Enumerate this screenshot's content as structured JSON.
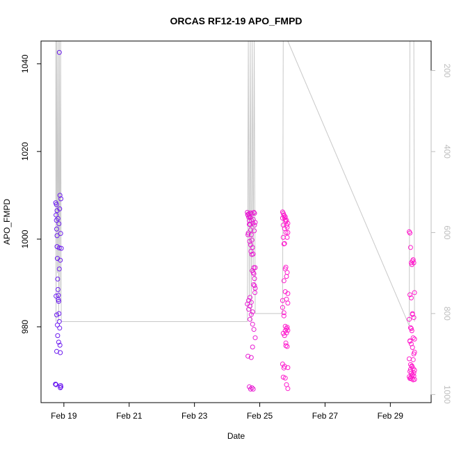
{
  "chart_data": {
    "type": "scatter",
    "title": "ORCAS RF12-19 APO_FMPD",
    "xlabel": "Date",
    "ylabel": "APO_FMPD",
    "x_ticks": [
      "Feb 19",
      "Feb 21",
      "Feb 23",
      "Feb 25",
      "Feb 27",
      "Feb 29"
    ],
    "x_tick_days": [
      19,
      21,
      23,
      25,
      27,
      29
    ],
    "xlim": [
      18.3,
      30.25
    ],
    "ylim": [
      962.7,
      1045.2
    ],
    "y_ticks": [
      980,
      1000,
      1020,
      1040
    ],
    "secondary_axis": {
      "side": "right",
      "reversed": true,
      "color": "#bdbdbd",
      "ticks": [
        200,
        400,
        600,
        800,
        1000
      ],
      "lim": [
        1020,
        127
      ]
    },
    "marker": "open-circle",
    "color_gradient": [
      "#6a1cf0",
      "#ff1ccc"
    ],
    "series": [
      {
        "x": [
          18.75,
          18.76,
          18.77,
          18.78,
          18.79,
          18.8,
          18.81,
          18.82,
          18.83,
          18.84,
          18.85,
          18.86,
          18.87,
          18.88,
          18.89,
          18.9,
          18.75,
          18.78,
          18.8,
          18.83,
          18.86,
          18.88,
          18.91,
          18.77,
          18.79,
          18.82,
          18.85,
          18.87,
          18.9,
          18.92,
          18.76,
          18.78,
          18.81,
          18.84,
          18.86,
          18.89,
          18.74,
          18.76,
          18.89,
          18.91,
          18.79,
          18.86
        ],
        "y": [
          1008.3,
          1005.5,
          1004.3,
          1002.3,
          998.3,
          995.6,
          990.9,
          988.5,
          987.2,
          985.8,
          983.0,
          981.2,
          979.7,
          975.8,
          974.1,
          966.6,
          966.9,
          974.4,
          980.4,
          986.2,
          998.0,
          1010.0,
          1009.2,
          1007.9,
          1006.5,
          1004.7,
          1003.5,
          1006.9,
          1001.3,
          997.9,
          987.0,
          982.7,
          978.0,
          976.5,
          993.2,
          995.2,
          966.9,
          966.8,
          966.1,
          966.3,
          1000.8,
          1042.6
        ]
      },
      {
        "x": [
          24.62,
          24.64,
          24.66,
          24.68,
          24.7,
          24.72,
          24.74,
          24.76,
          24.78,
          24.8,
          24.82,
          24.84,
          24.86,
          24.66,
          24.7,
          24.74,
          24.78,
          24.82,
          24.86,
          24.64,
          24.68,
          24.72,
          24.76,
          24.8,
          24.84,
          24.63,
          24.67,
          24.71,
          24.75,
          24.79,
          24.83,
          24.65,
          24.69,
          24.73,
          24.77,
          24.81,
          24.85,
          24.62,
          24.66,
          24.7,
          24.74,
          24.78,
          24.82,
          24.86,
          24.68,
          24.72,
          24.76,
          24.8,
          24.84,
          24.7,
          24.74,
          24.78,
          24.82,
          24.86,
          24.64,
          24.68,
          24.72,
          24.76,
          24.8,
          24.84
        ],
        "y": [
          1006.1,
          1005.5,
          1005.0,
          1004.2,
          1003.3,
          1002.1,
          1001.0,
          999.8,
          998.1,
          996.6,
          993.5,
          991.0,
          988.8,
          986.0,
          984.7,
          982.8,
          980.6,
          979.4,
          977.5,
          973.3,
          966.3,
          965.8,
          966.1,
          965.8,
          1005.9,
          1005.6,
          1005.8,
          1004.9,
          1004.2,
          1003.6,
          1001.9,
          1001.4,
          999.5,
          997.2,
          992.8,
          989.6,
          987.8,
          985.2,
          984.0,
          981.7,
          973.0,
          975.4,
          1006.1,
          1003.8,
          1005.3,
          998.7,
          996.5,
          992.4,
          989.4,
          986.7,
          985.6,
          983.4,
          992.1,
          993.5,
          1001.0,
          1003.4,
          1006.0,
          1005.8,
          1004.5,
          1003.2
        ]
      },
      {
        "x": [
          25.7,
          25.72,
          25.74,
          25.76,
          25.78,
          25.8,
          25.82,
          25.84,
          25.86,
          25.72,
          25.76,
          25.8,
          25.84,
          25.74,
          25.78,
          25.82,
          25.86,
          25.7,
          25.74,
          25.78,
          25.82,
          25.86,
          25.72,
          25.76,
          25.8,
          25.84,
          25.7,
          25.74,
          25.78,
          25.82,
          25.86,
          25.72,
          25.76,
          25.8,
          25.84,
          25.7,
          25.74,
          25.78,
          25.82,
          25.86,
          25.72,
          25.76,
          25.8,
          25.84,
          25.74,
          25.78,
          25.82,
          25.86,
          25.7,
          25.74,
          25.78,
          25.82,
          25.86
        ],
        "y": [
          1006.2,
          1005.9,
          1005.4,
          1004.9,
          1004.4,
          1004.0,
          1003.2,
          1002.7,
          1001.5,
          1000.4,
          999.0,
          993.6,
          992.4,
          990.5,
          988.0,
          986.3,
          985.4,
          984.4,
          983.2,
          980.1,
          979.6,
          979.2,
          978.5,
          978.0,
          975.7,
          975.5,
          971.5,
          970.6,
          968.3,
          966.8,
          965.9,
          968.5,
          971.0,
          976.3,
          979.9,
          1004.8,
          1005.5,
          1005.1,
          1004.3,
          1003.6,
          1003.2,
          1002.4,
          1001.5,
          1000.4,
          998.9,
          993.2,
          991.5,
          987.6,
          986.0,
          982.5,
          979.1,
          978.6,
          970.7
        ]
      },
      {
        "x": [
          29.58,
          29.6,
          29.62,
          29.64,
          29.66,
          29.68,
          29.7,
          29.72,
          29.74,
          29.6,
          29.64,
          29.68,
          29.72,
          29.58,
          29.62,
          29.66,
          29.7,
          29.74,
          29.6,
          29.64,
          29.68,
          29.72,
          29.58,
          29.62,
          29.66,
          29.7,
          29.74,
          29.6,
          29.64,
          29.68,
          29.72,
          29.58,
          29.62,
          29.66,
          29.7,
          29.74,
          29.6,
          29.64,
          29.68,
          29.72,
          29.62,
          29.66,
          29.7,
          29.74,
          29.6,
          29.64,
          29.68
        ],
        "y": [
          1001.7,
          1001.4,
          998.1,
          994.6,
          994.2,
          995.0,
          995.3,
          994.6,
          987.8,
          987.3,
          986.6,
          982.8,
          982.1,
          981.7,
          979.8,
          979.1,
          977.5,
          977.2,
          976.7,
          976.1,
          975.3,
          973.8,
          972.7,
          971.4,
          970.9,
          970.5,
          970.1,
          969.8,
          969.4,
          969.1,
          968.8,
          968.6,
          968.3,
          968.1,
          967.9,
          968.0,
          968.2,
          968.6,
          969.0,
          969.5,
          970.3,
          971.1,
          972.5,
          974.2,
          976.8,
          979.6,
          983.0
        ]
      }
    ],
    "secondary_series": {
      "type": "line",
      "color": "#c8c8c8",
      "x": [
        18.75,
        18.76,
        18.78,
        18.8,
        18.82,
        18.84,
        18.86,
        18.88,
        18.9,
        18.92,
        24.62,
        24.65,
        24.68,
        24.71,
        24.74,
        24.77,
        24.8,
        24.83,
        24.86,
        25.7,
        25.72,
        25.74,
        25.76,
        25.78,
        25.8,
        25.82,
        25.84,
        25.86,
        29.58,
        29.6,
        29.62,
        29.64,
        29.66,
        29.68,
        29.7,
        29.72,
        29.74
      ],
      "y": [
        127,
        820,
        127,
        700,
        127,
        820,
        127,
        760,
        127,
        820,
        820,
        127,
        760,
        127,
        820,
        127,
        700,
        127,
        800,
        800,
        127,
        127,
        127,
        127,
        127,
        127,
        127,
        127,
        830,
        127,
        127,
        127,
        127,
        127,
        127,
        127,
        820
      ]
    }
  }
}
